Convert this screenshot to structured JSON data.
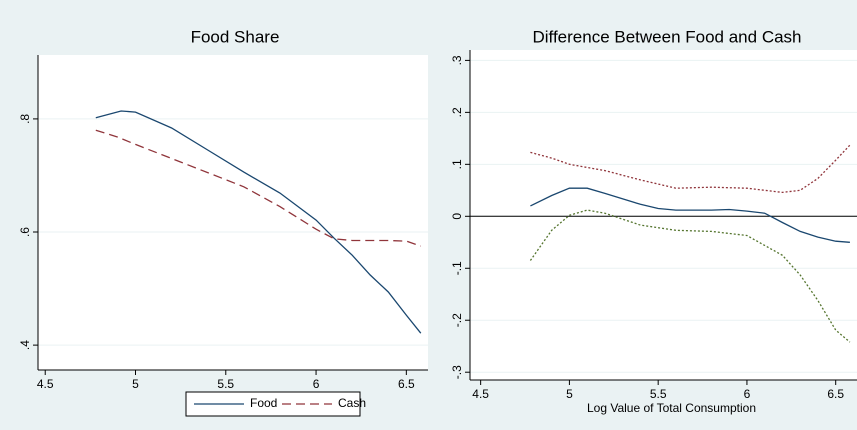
{
  "chart_data": [
    {
      "type": "line",
      "title": "Food Share",
      "xlim": [
        4.46,
        6.62
      ],
      "xticks": [
        4.5,
        5,
        5.5,
        6,
        6.5
      ],
      "ylim": [
        0.356,
        0.913
      ],
      "yticks": [
        {
          "value": 0.4,
          "label": ".4"
        },
        {
          "value": 0.6,
          "label": ".6"
        },
        {
          "value": 0.8,
          "label": ".8"
        }
      ],
      "grid": true,
      "legend": "bottom",
      "series": [
        {
          "name": "Food",
          "color": "#1a476f",
          "dash": "solid",
          "x": [
            4.78,
            4.92,
            5.0,
            5.2,
            5.4,
            5.6,
            5.8,
            6.0,
            6.1,
            6.2,
            6.3,
            6.4,
            6.5,
            6.58
          ],
          "values": [
            0.802,
            0.814,
            0.812,
            0.784,
            0.745,
            0.706,
            0.669,
            0.621,
            0.589,
            0.559,
            0.524,
            0.494,
            0.453,
            0.421
          ]
        },
        {
          "name": "Cash",
          "color": "#90353b",
          "dash": "dashed",
          "x": [
            4.78,
            4.9,
            5.0,
            5.2,
            5.4,
            5.6,
            5.8,
            6.0,
            6.1,
            6.2,
            6.4,
            6.5,
            6.58
          ],
          "values": [
            0.78,
            0.768,
            0.755,
            0.73,
            0.705,
            0.68,
            0.645,
            0.605,
            0.588,
            0.585,
            0.585,
            0.584,
            0.575
          ]
        }
      ]
    },
    {
      "type": "line",
      "title": "Difference Between Food and Cash",
      "xlabel": "Log Value of Total Consumption",
      "xlim": [
        4.44,
        6.62
      ],
      "xticks": [
        4.5,
        5,
        5.5,
        6,
        6.5
      ],
      "ylim": [
        -0.315,
        0.32
      ],
      "yticks": [
        {
          "value": -0.3,
          "label": "-.3"
        },
        {
          "value": -0.2,
          "label": "-.2"
        },
        {
          "value": -0.1,
          "label": "-.1"
        },
        0,
        {
          "value": 0.1,
          "label": ".1"
        },
        {
          "value": 0.2,
          "label": ".2"
        },
        {
          "value": 0.3,
          "label": ".3"
        }
      ],
      "grid": true,
      "reference_line": 0,
      "series": [
        {
          "color": "#1a476f",
          "dash": "solid",
          "x": [
            4.78,
            4.9,
            5.0,
            5.1,
            5.2,
            5.4,
            5.5,
            5.6,
            5.8,
            5.9,
            6.0,
            6.1,
            6.2,
            6.3,
            6.4,
            6.5,
            6.58
          ],
          "values": [
            0.02,
            0.04,
            0.054,
            0.054,
            0.044,
            0.023,
            0.015,
            0.012,
            0.012,
            0.013,
            0.01,
            0.006,
            -0.012,
            -0.029,
            -0.04,
            -0.048,
            -0.05
          ]
        },
        {
          "color": "#90353b",
          "dash": "dotted",
          "x": [
            4.78,
            4.9,
            5.0,
            5.2,
            5.4,
            5.6,
            5.8,
            6.0,
            6.2,
            6.3,
            6.4,
            6.5,
            6.58
          ],
          "values": [
            0.123,
            0.112,
            0.1,
            0.088,
            0.07,
            0.054,
            0.056,
            0.054,
            0.046,
            0.05,
            0.073,
            0.108,
            0.137
          ]
        },
        {
          "color": "#55752f",
          "dash": "dotted",
          "x": [
            4.78,
            4.9,
            5.0,
            5.1,
            5.2,
            5.4,
            5.6,
            5.8,
            6.0,
            6.2,
            6.3,
            6.4,
            6.5,
            6.58
          ],
          "values": [
            -0.085,
            -0.027,
            0.002,
            0.012,
            0.006,
            -0.017,
            -0.027,
            -0.029,
            -0.037,
            -0.075,
            -0.113,
            -0.162,
            -0.219,
            -0.242
          ]
        }
      ]
    }
  ]
}
